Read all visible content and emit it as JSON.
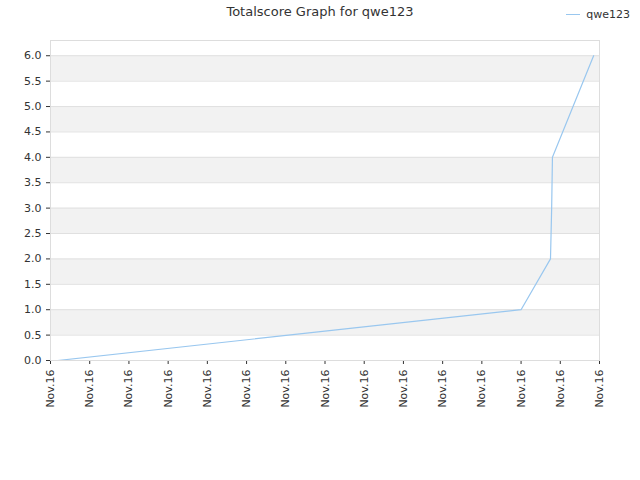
{
  "chart_data": {
    "type": "line",
    "title": "Totalscore Graph for qwe123",
    "x": [
      0.18,
      12,
      12.75,
      12.78,
      12.8,
      13.85
    ],
    "xlim": [
      0,
      14
    ],
    "xticks": [
      {
        "value": 0,
        "label": "Nov.16"
      },
      {
        "value": 1,
        "label": "Nov.16"
      },
      {
        "value": 2,
        "label": "Nov.16"
      },
      {
        "value": 3,
        "label": "Nov.16"
      },
      {
        "value": 4,
        "label": "Nov.16"
      },
      {
        "value": 5,
        "label": "Nov.16"
      },
      {
        "value": 6,
        "label": "Nov.16"
      },
      {
        "value": 7,
        "label": "Nov.16"
      },
      {
        "value": 8,
        "label": "Nov.16"
      },
      {
        "value": 9,
        "label": "Nov.16"
      },
      {
        "value": 10,
        "label": "Nov.16"
      },
      {
        "value": 11,
        "label": "Nov.16"
      },
      {
        "value": 12,
        "label": "Nov.16"
      },
      {
        "value": 13,
        "label": "Nov.16"
      },
      {
        "value": 14,
        "label": "Nov.16"
      }
    ],
    "ylim": [
      0,
      6.3
    ],
    "yticks": [
      {
        "value": 0,
        "label": "0.0"
      },
      {
        "value": 0.5,
        "label": "0.5"
      },
      {
        "value": 1,
        "label": "1.0"
      },
      {
        "value": 1.5,
        "label": "1.5"
      },
      {
        "value": 2,
        "label": "2.0"
      },
      {
        "value": 2.5,
        "label": "2.5"
      },
      {
        "value": 3,
        "label": "3.0"
      },
      {
        "value": 3.5,
        "label": "3.5"
      },
      {
        "value": 4,
        "label": "4.0"
      },
      {
        "value": 4.5,
        "label": "4.5"
      },
      {
        "value": 5,
        "label": "5.0"
      },
      {
        "value": 5.5,
        "label": "5.5"
      },
      {
        "value": 6,
        "label": "6.0"
      }
    ],
    "series": [
      {
        "name": "qwe123",
        "color": "#99c7ef",
        "values": [
          0,
          1,
          2,
          3,
          4,
          6
        ]
      }
    ],
    "grid": true,
    "legend": "top-right"
  }
}
